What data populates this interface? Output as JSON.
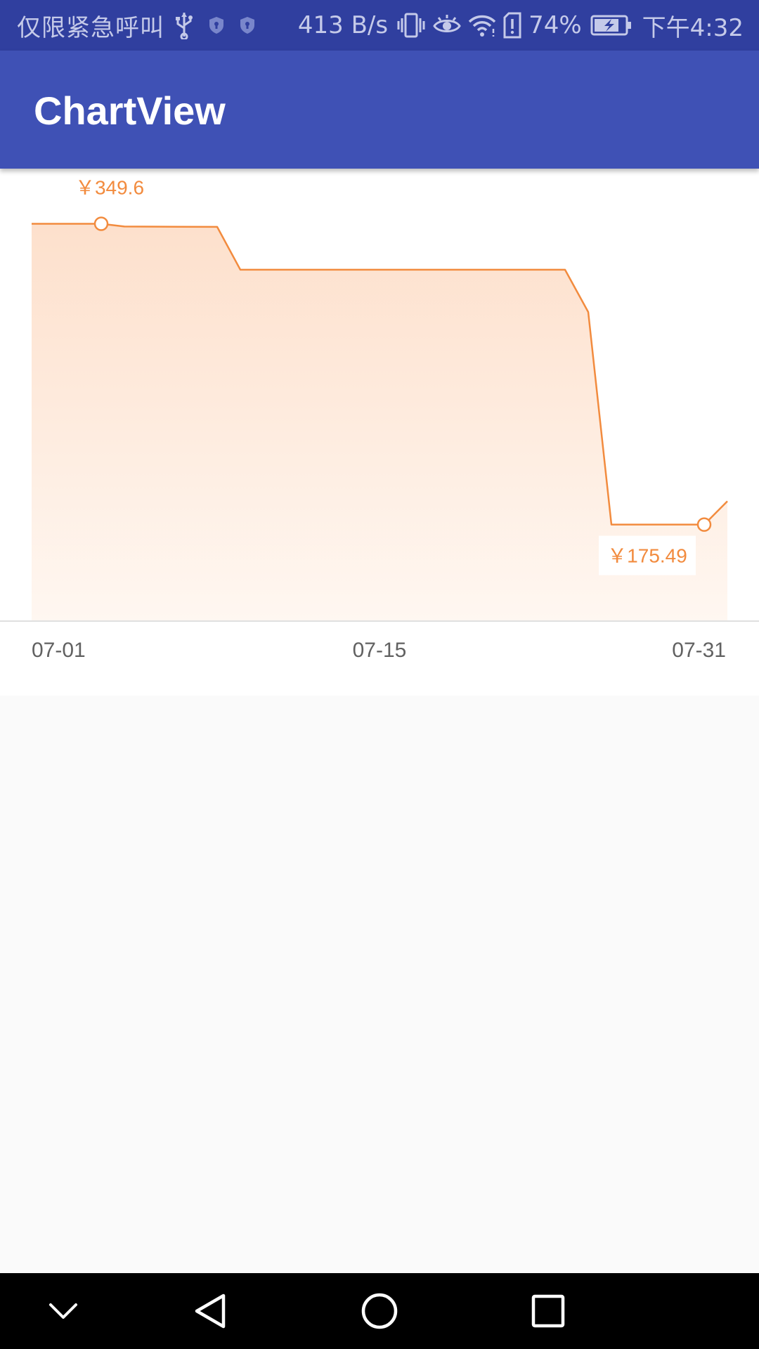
{
  "status_bar": {
    "carrier": "仅限紧急呼叫",
    "net_speed": "413 B/s",
    "battery_percent": "74%",
    "time": "下午4:32",
    "icons": [
      "usb-icon",
      "shield-icon",
      "shield-icon",
      "vibrate-icon",
      "eye-icon",
      "wifi-icon",
      "sim-alert-icon",
      "battery-charging-icon"
    ]
  },
  "app_bar": {
    "title": "ChartView"
  },
  "chart_data": {
    "type": "area",
    "x_tick_labels": [
      "07-01",
      "07-15",
      "07-31"
    ],
    "max_label": "￥349.6",
    "min_label": "￥175.49",
    "series": [
      {
        "color": "#f28b3e",
        "points": [
          {
            "x": 1,
            "y": 349.6
          },
          {
            "x": 4,
            "y": 349.6
          },
          {
            "x": 5,
            "y": 348.0
          },
          {
            "x": 9,
            "y": 347.8
          },
          {
            "x": 10,
            "y": 323.0
          },
          {
            "x": 24,
            "y": 323.0
          },
          {
            "x": 25,
            "y": 298.5
          },
          {
            "x": 26,
            "y": 175.49
          },
          {
            "x": 30,
            "y": 175.49
          },
          {
            "x": 31,
            "y": 189.0
          }
        ]
      }
    ],
    "xlim": [
      1,
      31
    ],
    "ylim": [
      120.0,
      362.0
    ],
    "fill_gradient": [
      "#fde0cc",
      "#fff7f1"
    ],
    "baseline_color": "#d6d6d6"
  },
  "nav_bar": {
    "buttons": [
      "hide-keyboard-icon",
      "back-icon",
      "home-icon",
      "recents-icon"
    ]
  }
}
